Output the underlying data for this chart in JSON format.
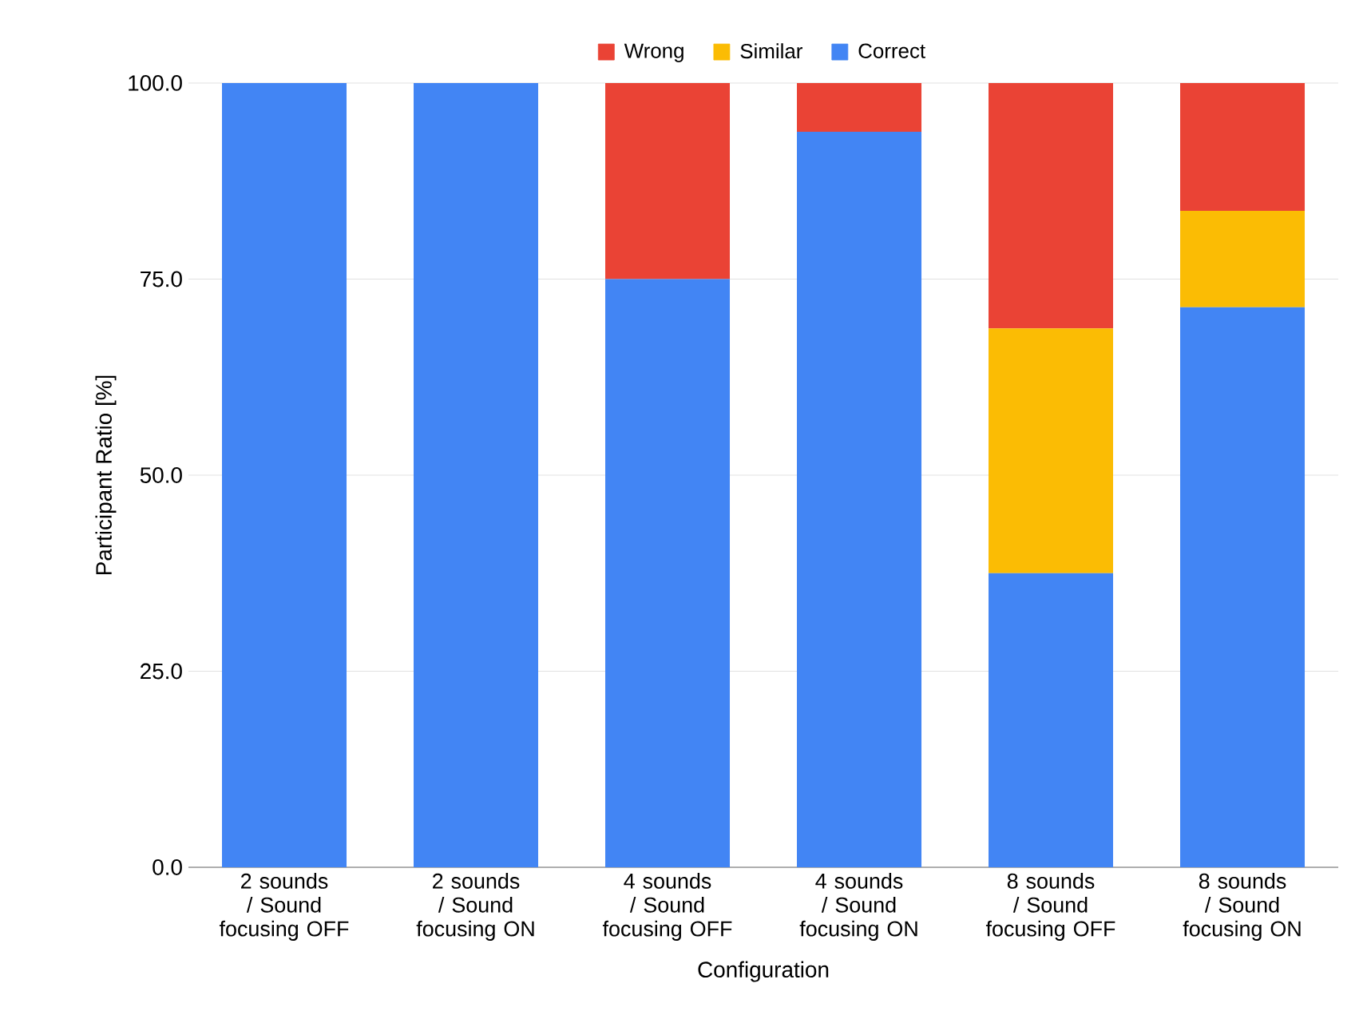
{
  "chart_data": {
    "type": "bar",
    "stacked": true,
    "xlabel": "Configuration",
    "ylabel": "Participant Ratio [%]",
    "categories": [
      "2 sounds / Sound focusing OFF",
      "2 sounds / Sound focusing ON",
      "4 sounds / Sound focusing OFF",
      "4 sounds / Sound focusing ON",
      "8 sounds / Sound focusing OFF",
      "8 sounds / Sound focusing ON"
    ],
    "series": [
      {
        "name": "Correct",
        "color": "#4285f4",
        "values": [
          100,
          100,
          75,
          93.8,
          37.5,
          71.4
        ]
      },
      {
        "name": "Similar",
        "color": "#fbbc04",
        "values": [
          0,
          0,
          0,
          0,
          31.2,
          12.3
        ]
      },
      {
        "name": "Wrong",
        "color": "#ea4335",
        "values": [
          0,
          0,
          25,
          6.2,
          31.3,
          16.3
        ]
      }
    ],
    "ylim": [
      0,
      100
    ],
    "yticks": [
      {
        "value": 0,
        "label": "0.0"
      },
      {
        "value": 25,
        "label": "25.0"
      },
      {
        "value": 50,
        "label": "50.0"
      },
      {
        "value": 75,
        "label": "75.0"
      },
      {
        "value": 100,
        "label": "100.0"
      }
    ],
    "grid": "y",
    "legend": "top"
  }
}
